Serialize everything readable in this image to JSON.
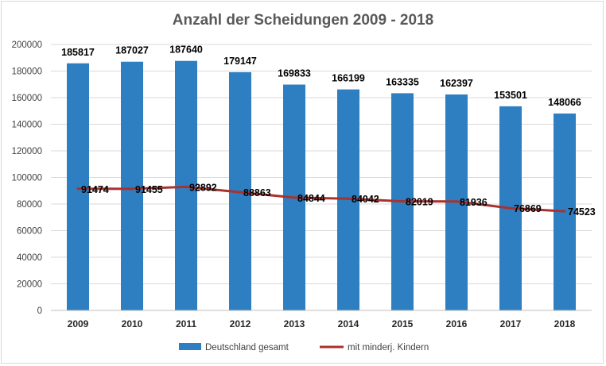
{
  "chart_data": {
    "type": "bar",
    "title": "Anzahl der Scheidungen 2009 - 2018",
    "categories": [
      "2009",
      "2010",
      "2011",
      "2012",
      "2013",
      "2014",
      "2015",
      "2016",
      "2017",
      "2018"
    ],
    "series": [
      {
        "name": "Deutschland gesamt",
        "type": "bar",
        "color": "#2e7fc1",
        "values": [
          185817,
          187027,
          187640,
          179147,
          169833,
          166199,
          163335,
          162397,
          153501,
          148066
        ]
      },
      {
        "name": "mit minderj. Kindern",
        "type": "line",
        "color": "#a8322d",
        "values": [
          91474,
          91455,
          92892,
          88863,
          84844,
          84042,
          82019,
          81936,
          76869,
          74523
        ]
      }
    ],
    "xlabel": "",
    "ylabel": "",
    "ylim": [
      0,
      200000
    ],
    "yticks": [
      "0",
      "20000",
      "40000",
      "60000",
      "80000",
      "100000",
      "120000",
      "140000",
      "160000",
      "180000",
      "200000"
    ],
    "grid": true,
    "legend": "bottom",
    "data_labels": true
  }
}
